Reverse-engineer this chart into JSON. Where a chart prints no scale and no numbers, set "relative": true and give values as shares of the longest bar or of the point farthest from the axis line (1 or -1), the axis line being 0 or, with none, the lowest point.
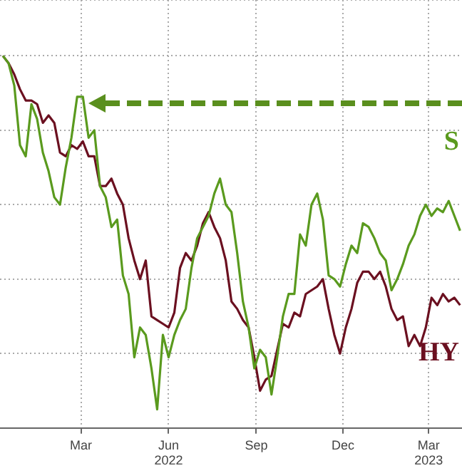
{
  "chart_data": {
    "type": "line",
    "relative": true,
    "grid": true,
    "legend": false,
    "marker": "none",
    "line_style": "solid",
    "tick_labels": "x",
    "x": [
      "2021-12-09",
      "2021-12-15",
      "2021-12-21",
      "2021-12-27",
      "2022-01-02",
      "2022-01-08",
      "2022-01-14",
      "2022-01-20",
      "2022-01-26",
      "2022-02-01",
      "2022-02-07",
      "2022-02-13",
      "2022-02-19",
      "2022-02-25",
      "2022-03-03",
      "2022-03-09",
      "2022-03-15",
      "2022-03-21",
      "2022-03-27",
      "2022-04-02",
      "2022-04-08",
      "2022-04-14",
      "2022-04-20",
      "2022-04-26",
      "2022-05-02",
      "2022-05-08",
      "2022-05-14",
      "2022-05-20",
      "2022-05-26",
      "2022-06-01",
      "2022-06-07",
      "2022-06-13",
      "2022-06-19",
      "2022-06-25",
      "2022-07-01",
      "2022-07-07",
      "2022-07-13",
      "2022-07-19",
      "2022-07-25",
      "2022-07-31",
      "2022-08-06",
      "2022-08-12",
      "2022-08-18",
      "2022-08-24",
      "2022-08-30",
      "2022-09-05",
      "2022-09-11",
      "2022-09-17",
      "2022-09-23",
      "2022-09-29",
      "2022-10-05",
      "2022-10-11",
      "2022-10-17",
      "2022-10-23",
      "2022-10-29",
      "2022-11-04",
      "2022-11-10",
      "2022-11-16",
      "2022-11-22",
      "2022-11-28",
      "2022-12-04",
      "2022-12-10",
      "2022-12-16",
      "2022-12-22",
      "2022-12-28",
      "2023-01-03",
      "2023-01-09",
      "2023-01-15",
      "2023-01-21",
      "2023-01-27",
      "2023-02-02",
      "2023-02-08",
      "2023-02-14",
      "2023-02-20",
      "2023-02-26",
      "2023-03-04",
      "2023-03-10",
      "2023-03-16",
      "2023-03-22",
      "2023-03-28",
      "2023-04-03"
    ],
    "xlim": [
      "2021-12-06",
      "2023-04-05"
    ],
    "xticks": [
      {
        "value": "2022-03-01",
        "label": "Mar"
      },
      {
        "value": "2022-06-01",
        "label": "Jun\n2022"
      },
      {
        "value": "2022-09-01",
        "label": "Sep"
      },
      {
        "value": "2022-12-01",
        "label": "Dec"
      },
      {
        "value": "2023-03-01",
        "label": "Mar\n2023"
      }
    ],
    "series": [
      {
        "name": "S",
        "color": "#5a9a1e",
        "values": [
          1.0,
          0.98,
          0.92,
          0.76,
          0.73,
          0.87,
          0.83,
          0.74,
          0.69,
          0.62,
          0.6,
          0.7,
          0.78,
          0.89,
          0.89,
          0.78,
          0.8,
          0.65,
          0.62,
          0.54,
          0.56,
          0.41,
          0.36,
          0.19,
          0.27,
          0.25,
          0.16,
          0.05,
          0.25,
          0.19,
          0.25,
          0.29,
          0.32,
          0.43,
          0.51,
          0.54,
          0.57,
          0.63,
          0.67,
          0.6,
          0.58,
          0.47,
          0.34,
          0.27,
          0.16,
          0.21,
          0.19,
          0.09,
          0.19,
          0.3,
          0.36,
          0.36,
          0.52,
          0.49,
          0.6,
          0.63,
          0.56,
          0.41,
          0.4,
          0.38,
          0.44,
          0.49,
          0.47,
          0.55,
          0.54,
          0.51,
          0.47,
          0.45,
          0.37,
          0.4,
          0.44,
          0.49,
          0.52,
          0.57,
          0.6,
          0.57,
          0.59,
          0.58,
          0.61,
          0.57,
          0.53
        ]
      },
      {
        "name": "HY",
        "color": "#6b1020",
        "values": [
          1.0,
          0.98,
          0.95,
          0.91,
          0.88,
          0.88,
          0.87,
          0.82,
          0.84,
          0.82,
          0.74,
          0.73,
          0.76,
          0.75,
          0.77,
          0.73,
          0.73,
          0.65,
          0.65,
          0.67,
          0.63,
          0.6,
          0.51,
          0.45,
          0.4,
          0.45,
          0.3,
          0.29,
          0.28,
          0.27,
          0.31,
          0.43,
          0.47,
          0.45,
          0.49,
          0.55,
          0.58,
          0.54,
          0.51,
          0.45,
          0.34,
          0.32,
          0.29,
          0.27,
          0.19,
          0.1,
          0.13,
          0.14,
          0.21,
          0.28,
          0.27,
          0.31,
          0.3,
          0.36,
          0.37,
          0.38,
          0.4,
          0.32,
          0.25,
          0.2,
          0.27,
          0.32,
          0.39,
          0.42,
          0.42,
          0.4,
          0.42,
          0.38,
          0.32,
          0.29,
          0.3,
          0.22,
          0.25,
          0.22,
          0.27,
          0.35,
          0.33,
          0.36,
          0.34,
          0.35,
          0.33
        ]
      }
    ]
  }
}
